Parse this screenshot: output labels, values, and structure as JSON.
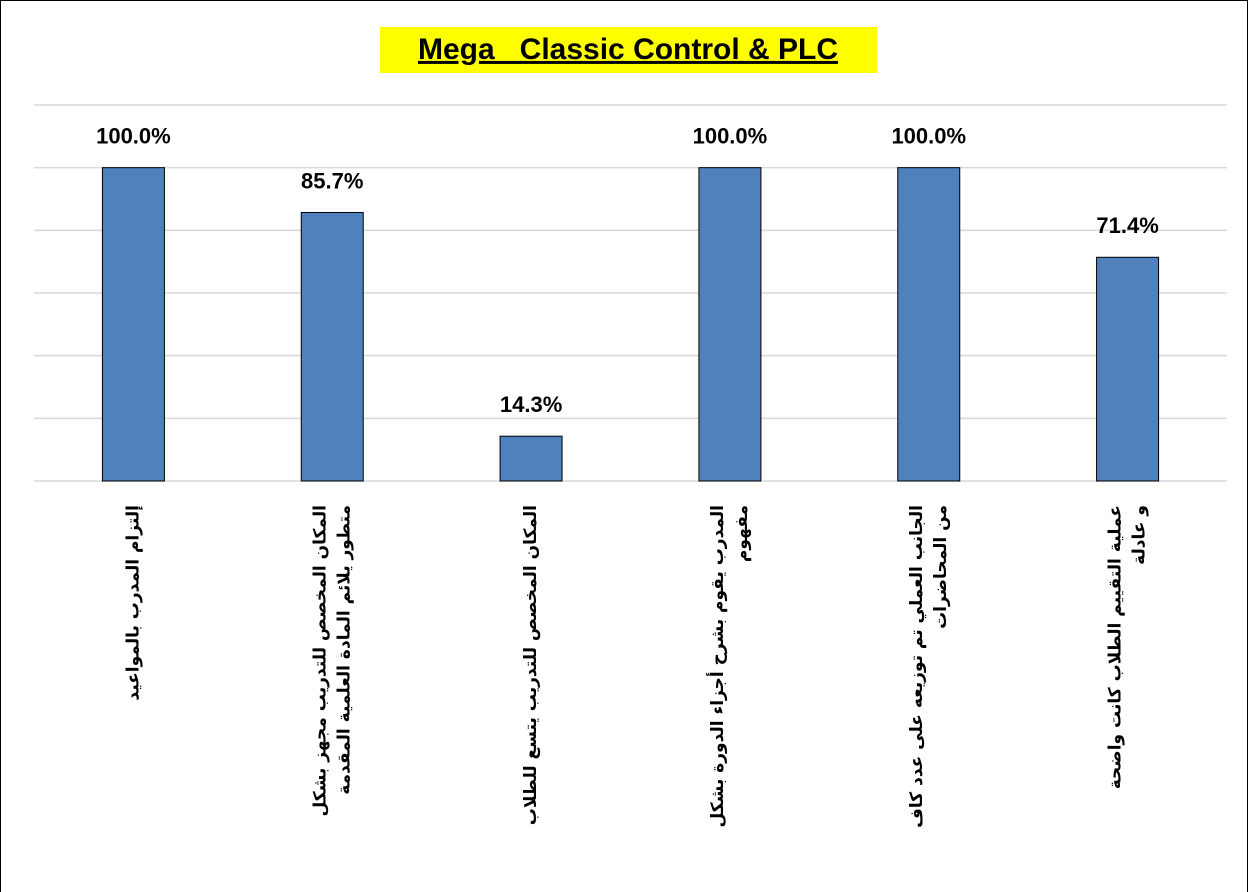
{
  "chart_data": {
    "type": "bar",
    "title": "Mega_ Classic Control & PLC",
    "categories": [
      [
        "إلتزام المدرب بالمواعيد"
      ],
      [
        "المكان المخصص للتدريب مجهز بشكل",
        "متطور يلائم المادة العلمية المقدمة"
      ],
      [
        "المكان المخصص للتدريب يتسع للطلاب"
      ],
      [
        "المدرب يقوم بشرح أجزاء الدورة بشكل",
        "مفهوم"
      ],
      [
        "الجانب العملي تم توزيعه على عدد كاف",
        "من المحاضرات"
      ],
      [
        "عملية التقييم الطلاب كانت واضحة",
        "و عادلة"
      ]
    ],
    "values": [
      100,
      85.7,
      14.3,
      100,
      100,
      71.4
    ],
    "value_labels": [
      "100.0%",
      "85.7%",
      "14.3%",
      "100.0%",
      "100.0%",
      "71.4%"
    ],
    "color": "#4f81bd",
    "ylim": [
      0,
      120
    ],
    "yticks": [
      0,
      20,
      40,
      60,
      80,
      100,
      120
    ],
    "grid": true
  }
}
